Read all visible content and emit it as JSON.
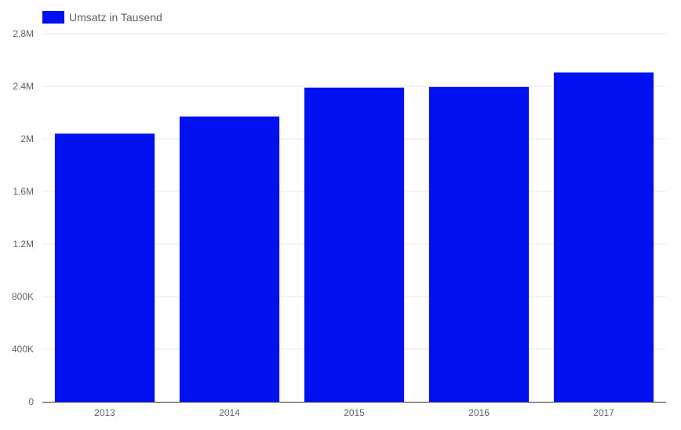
{
  "chart_data": {
    "type": "bar",
    "categories": [
      "2013",
      "2014",
      "2015",
      "2016",
      "2017"
    ],
    "series": [
      {
        "name": "Umsatz in Tausend",
        "values": [
          2040000,
          2170000,
          2390000,
          2395000,
          2505000
        ],
        "color": "#0010f0"
      }
    ],
    "ylim": [
      0,
      2800000
    ],
    "yticks": [
      0,
      400000,
      800000,
      1200000,
      1600000,
      2000000,
      2400000,
      2800000
    ],
    "ytick_labels": [
      "0",
      "400K",
      "800K",
      "1.2M",
      "1.6M",
      "2M",
      "2.4M",
      "2.8M"
    ],
    "grid": true,
    "legend_position": "top-left"
  }
}
